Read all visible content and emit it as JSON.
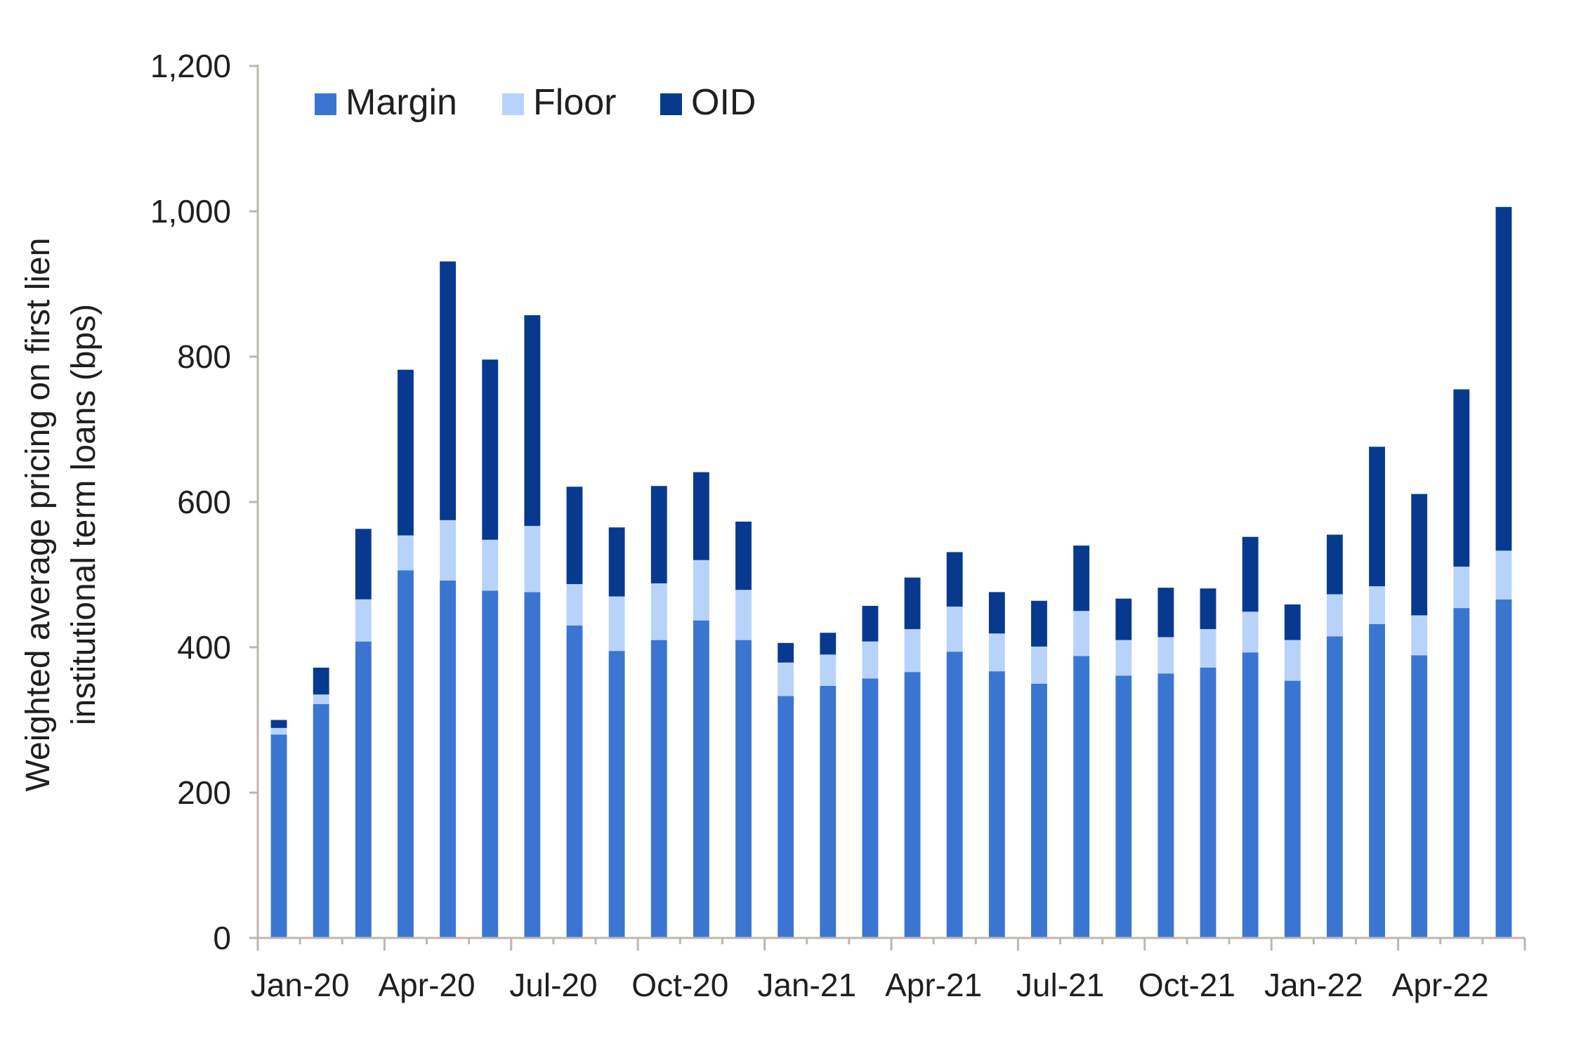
{
  "chart_data": {
    "type": "bar",
    "stacked": true,
    "title": "",
    "xlabel": "",
    "ylabel_lines": [
      "Weighted average pricing on first lien",
      "institutional term loans (bps)"
    ],
    "ylim": [
      0,
      1200
    ],
    "yticks": [
      0,
      200,
      400,
      600,
      800,
      1000,
      1200
    ],
    "ytick_labels": [
      "0",
      "200",
      "400",
      "600",
      "800",
      "1,000",
      "1,200"
    ],
    "grid": false,
    "legend_position": "top-left",
    "categories": [
      "Jan-20",
      "Feb-20",
      "Mar-20",
      "Apr-20",
      "May-20",
      "Jun-20",
      "Jul-20",
      "Aug-20",
      "Sep-20",
      "Oct-20",
      "Nov-20",
      "Dec-20",
      "Jan-21",
      "Feb-21",
      "Mar-21",
      "Apr-21",
      "May-21",
      "Jun-21",
      "Jul-21",
      "Aug-21",
      "Sep-21",
      "Oct-21",
      "Nov-21",
      "Dec-21",
      "Jan-22",
      "Feb-22",
      "Mar-22",
      "Apr-22",
      "May-22",
      "Jun-22"
    ],
    "xtick_labels": [
      "Jan-20",
      "Apr-20",
      "Jul-20",
      "Oct-20",
      "Jan-21",
      "Apr-21",
      "Jul-21",
      "Oct-21",
      "Jan-22",
      "Apr-22"
    ],
    "series": [
      {
        "name": "Margin",
        "color": "#3A75D2",
        "values": [
          280,
          322,
          408,
          506,
          492,
          478,
          476,
          430,
          395,
          410,
          437,
          410,
          333,
          347,
          357,
          366,
          394,
          367,
          350,
          388,
          361,
          364,
          372,
          393,
          354,
          415,
          432,
          389,
          454,
          466
        ]
      },
      {
        "name": "Floor",
        "color": "#B8D3F9",
        "values": [
          9,
          13,
          58,
          48,
          83,
          70,
          91,
          57,
          75,
          78,
          83,
          69,
          46,
          43,
          51,
          59,
          62,
          52,
          51,
          62,
          49,
          50,
          53,
          56,
          56,
          58,
          52,
          55,
          57,
          67
        ]
      },
      {
        "name": "OID",
        "color": "#073A8F",
        "values": [
          11,
          37,
          97,
          228,
          356,
          248,
          290,
          134,
          95,
          134,
          121,
          94,
          27,
          30,
          49,
          71,
          75,
          57,
          63,
          90,
          57,
          68,
          56,
          103,
          49,
          82,
          192,
          167,
          244,
          473
        ]
      }
    ]
  }
}
